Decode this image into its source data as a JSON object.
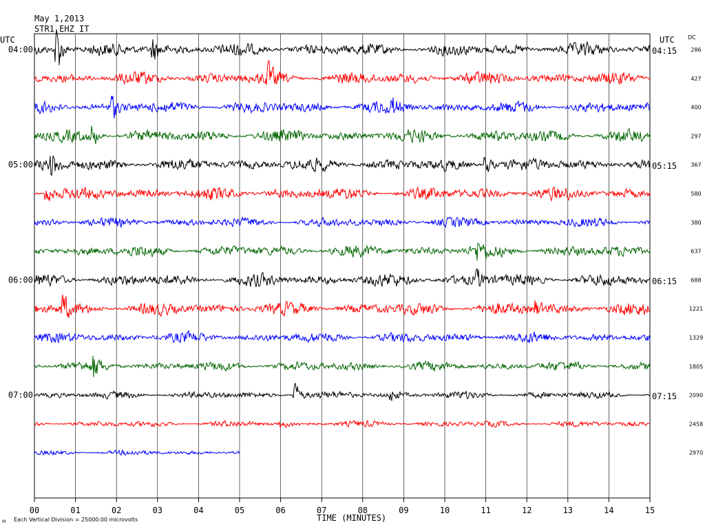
{
  "header": {
    "date": "May 1,2013",
    "station": "STR1 EHZ IT",
    "utc_left": "UTC",
    "utc_right": "UTC",
    "dc_label": "DC"
  },
  "footer": {
    "mark": "M",
    "scale_note": "Each Vertical Division = 25000.00 microvolts",
    "xlabel": "TIME (MINUTES)"
  },
  "chart_data": {
    "type": "line",
    "title": "",
    "xlabel": "TIME (MINUTES)",
    "ylabel": "",
    "xlim": [
      0,
      15
    ],
    "x_ticks": [
      "00",
      "01",
      "02",
      "03",
      "04",
      "05",
      "06",
      "07",
      "08",
      "09",
      "10",
      "11",
      "12",
      "13",
      "14",
      "15"
    ],
    "grid": "vertical-minute-lines",
    "line_colors": [
      "#000000",
      "#ff0000",
      "#0000ff",
      "#006400"
    ],
    "left_hour_labels": [
      "04:00",
      "05:00",
      "06:00",
      "07:00"
    ],
    "right_hour_labels": [
      "04:15",
      "05:15",
      "06:15",
      "07:15"
    ],
    "dc_values": [
      "286",
      "427",
      "400",
      "297",
      "367",
      "580",
      "380",
      "637",
      "688",
      "1221",
      "1329",
      "1805",
      "2090",
      "2458",
      "2970"
    ],
    "traces": [
      {
        "color": "#000000",
        "end_minute": 15,
        "amplitude": 12,
        "events": [
          {
            "t": 0.55,
            "a": 55
          },
          {
            "t": 2.9,
            "a": 22
          }
        ]
      },
      {
        "color": "#ff0000",
        "end_minute": 15,
        "amplitude": 12,
        "events": [
          {
            "t": 5.7,
            "a": 20
          }
        ]
      },
      {
        "color": "#0000ff",
        "end_minute": 15,
        "amplitude": 11,
        "events": [
          {
            "t": 1.9,
            "a": 22
          },
          {
            "t": 8.7,
            "a": 18
          }
        ]
      },
      {
        "color": "#006400",
        "end_minute": 15,
        "amplitude": 12,
        "events": [
          {
            "t": 1.4,
            "a": 22
          }
        ]
      },
      {
        "color": "#000000",
        "end_minute": 15,
        "amplitude": 12,
        "events": [
          {
            "t": 0.4,
            "a": 22
          },
          {
            "t": 11.0,
            "a": 24
          }
        ]
      },
      {
        "color": "#ff0000",
        "end_minute": 15,
        "amplitude": 12,
        "events": [
          {
            "t": 0.3,
            "a": 22
          }
        ]
      },
      {
        "color": "#0000ff",
        "end_minute": 15,
        "amplitude": 9,
        "events": []
      },
      {
        "color": "#006400",
        "end_minute": 15,
        "amplitude": 11,
        "events": [
          {
            "t": 10.8,
            "a": 18
          }
        ]
      },
      {
        "color": "#000000",
        "end_minute": 15,
        "amplitude": 12,
        "events": [
          {
            "t": 10.8,
            "a": 16
          }
        ]
      },
      {
        "color": "#ff0000",
        "end_minute": 15,
        "amplitude": 12,
        "events": [
          {
            "t": 0.7,
            "a": 24
          },
          {
            "t": 12.2,
            "a": 16
          }
        ]
      },
      {
        "color": "#0000ff",
        "end_minute": 15,
        "amplitude": 10,
        "events": []
      },
      {
        "color": "#006400",
        "end_minute": 15,
        "amplitude": 9,
        "events": [
          {
            "t": 1.45,
            "a": 22
          }
        ]
      },
      {
        "color": "#000000",
        "end_minute": 15,
        "amplitude": 7,
        "events": [
          {
            "t": 6.35,
            "a": 26
          },
          {
            "t": 8.7,
            "a": 12
          }
        ]
      },
      {
        "color": "#ff0000",
        "end_minute": 15,
        "amplitude": 6,
        "events": [
          {
            "t": 6.0,
            "a": 8
          }
        ]
      },
      {
        "color": "#0000ff",
        "end_minute": 5,
        "amplitude": 5,
        "events": []
      }
    ]
  }
}
